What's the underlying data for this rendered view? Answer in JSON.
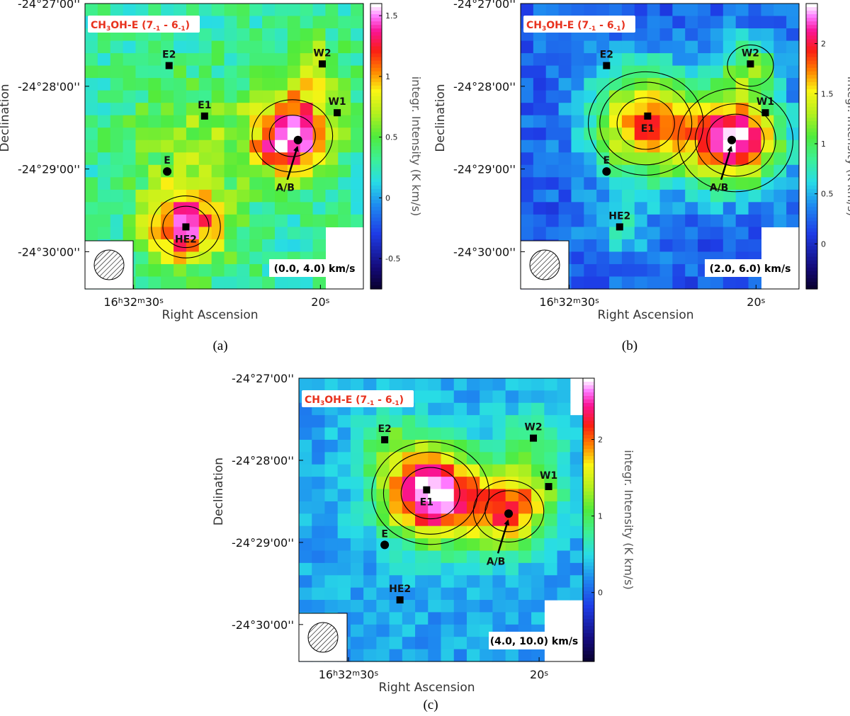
{
  "figure": {
    "xlabel": "Right Ascension",
    "ylabel": "Declination",
    "colorbar_label": "integr. Intensity (K km/s)",
    "ra_ticks": [
      {
        "h": "16",
        "m": "32",
        "s": "30",
        "ra_s": 30
      },
      {
        "s": "20",
        "ra_s": 20
      }
    ],
    "dec_ticks": [
      "-24°27'00''",
      "-24°28'00''",
      "-24°29'00''",
      "-24°30'00''"
    ]
  },
  "chart_data": [
    {
      "type": "heatmap",
      "panel": "(a)",
      "title": "CH3OH-E (7-1 - 6-1)",
      "title_parts": {
        "main": "CH",
        "sub1": "3",
        "mid": "OH-E (7",
        "sub2": "-1",
        "dash": " - 6",
        "sub3": "-1",
        "end": ")"
      },
      "velocity_range": "(0.0, 4.0) km/s",
      "colorbar": {
        "min": -0.75,
        "max": 1.6,
        "ticks": [
          -0.5,
          0,
          0.5,
          1,
          1.5
        ],
        "tick_labels": [
          "-0.5",
          "0",
          "0.5",
          "1",
          "1.5"
        ]
      },
      "background_level": 0.3,
      "peaks": [
        {
          "ra": 21.5,
          "dec": -28.6,
          "amp": 1.35,
          "sigma": 5
        },
        {
          "ra": 27.3,
          "dec": -29.7,
          "amp": 1.05,
          "sigma": 5
        },
        {
          "ra": 26.9,
          "dec": -28.7,
          "amp": 0.35,
          "sigma": 8
        },
        {
          "ra": 20.4,
          "dec": -27.8,
          "amp": 0.45,
          "sigma": 4
        }
      ],
      "contours": [
        {
          "ra": 21.5,
          "dec": -28.6,
          "r": [
            4,
            7
          ]
        },
        {
          "ra": 27.2,
          "dec": -29.7,
          "r": [
            4,
            6
          ]
        }
      ],
      "sources": [
        {
          "name": "E2",
          "shape": "square",
          "ra": 28.1,
          "dec": -27.75,
          "label_pos": "above"
        },
        {
          "name": "W2",
          "shape": "square",
          "ra": 19.9,
          "dec": -27.73,
          "label_pos": "above"
        },
        {
          "name": "E1",
          "shape": "square",
          "ra": 26.2,
          "dec": -28.36,
          "label_pos": "above"
        },
        {
          "name": "W1",
          "shape": "square",
          "ra": 19.1,
          "dec": -28.32,
          "label_pos": "above"
        },
        {
          "name": "E",
          "shape": "circle",
          "ra": 28.2,
          "dec": -29.03,
          "label_pos": "above"
        },
        {
          "name": "HE2",
          "shape": "square",
          "ra": 27.2,
          "dec": -29.7,
          "label_pos": "below"
        },
        {
          "name": "A/B",
          "shape": "circle",
          "ra": 21.2,
          "dec": -28.65,
          "label_pos": "arrow"
        }
      ]
    },
    {
      "type": "heatmap",
      "panel": "(b)",
      "title": "CH3OH-E (7-1 - 6-1)",
      "title_parts": {
        "main": "CH",
        "sub1": "3",
        "mid": "OH-E (7",
        "sub2": "-1",
        "dash": " - 6",
        "sub3": "-1",
        "end": ")"
      },
      "velocity_range": "(2.0, 6.0) km/s",
      "colorbar": {
        "min": -0.45,
        "max": 2.4,
        "ticks": [
          0,
          0.5,
          1,
          1.5,
          2
        ],
        "tick_labels": [
          "0",
          "0.5",
          "1",
          "1.5",
          "2"
        ]
      },
      "background_level": 0.25,
      "peaks": [
        {
          "ra": 25.9,
          "dec": -28.45,
          "amp": 1.6,
          "sigma": 7
        },
        {
          "ra": 21.1,
          "dec": -28.65,
          "amp": 2.0,
          "sigma": 6
        },
        {
          "ra": 20.3,
          "dec": -27.75,
          "amp": 0.8,
          "sigma": 4
        },
        {
          "ra": 27.3,
          "dec": -29.7,
          "amp": 0.4,
          "sigma": 4
        }
      ],
      "contours": [
        {
          "ra": 25.9,
          "dec": -28.45,
          "r": [
            5,
            8,
            10
          ]
        },
        {
          "ra": 21.1,
          "dec": -28.65,
          "r": [
            5,
            7,
            10
          ]
        },
        {
          "ra": 20.3,
          "dec": -27.75,
          "r": [
            4
          ]
        }
      ],
      "sources": [
        {
          "name": "E2",
          "shape": "square",
          "ra": 28.0,
          "dec": -27.75,
          "label_pos": "above"
        },
        {
          "name": "W2",
          "shape": "square",
          "ra": 20.3,
          "dec": -27.73,
          "label_pos": "above"
        },
        {
          "name": "E1",
          "shape": "square",
          "ra": 25.8,
          "dec": -28.36,
          "label_pos": "below"
        },
        {
          "name": "W1",
          "shape": "square",
          "ra": 19.5,
          "dec": -28.32,
          "label_pos": "above"
        },
        {
          "name": "E",
          "shape": "circle",
          "ra": 28.0,
          "dec": -29.03,
          "label_pos": "above"
        },
        {
          "name": "HE2",
          "shape": "square",
          "ra": 27.3,
          "dec": -29.7,
          "label_pos": "above"
        },
        {
          "name": "A/B",
          "shape": "circle",
          "ra": 21.3,
          "dec": -28.65,
          "label_pos": "arrow"
        }
      ]
    },
    {
      "type": "heatmap",
      "panel": "(c)",
      "title": "CH3OH-E (7-1 - 6-1)",
      "title_parts": {
        "main": "CH",
        "sub1": "3",
        "mid": "OH-E (7",
        "sub2": "-1",
        "dash": " - 6",
        "sub3": "-1",
        "end": ")"
      },
      "velocity_range": "(4.0, 10.0) km/s",
      "colorbar": {
        "min": -0.9,
        "max": 2.8,
        "ticks": [
          0,
          1,
          2
        ],
        "tick_labels": [
          "0",
          "1",
          "2"
        ]
      },
      "background_level": 0.3,
      "peaks": [
        {
          "ra": 25.7,
          "dec": -28.4,
          "amp": 2.6,
          "sigma": 6
        },
        {
          "ra": 21.7,
          "dec": -28.62,
          "amp": 1.7,
          "sigma": 5
        },
        {
          "ra": 20.3,
          "dec": -27.75,
          "amp": 0.6,
          "sigma": 4
        },
        {
          "ra": 28.1,
          "dec": -27.75,
          "amp": 0.55,
          "sigma": 4
        },
        {
          "ra": 20.0,
          "dec": -28.35,
          "amp": 0.5,
          "sigma": 4
        }
      ],
      "contours": [
        {
          "ra": 25.7,
          "dec": -28.4,
          "r": [
            5,
            8,
            10
          ]
        },
        {
          "ra": 21.6,
          "dec": -28.62,
          "r": [
            4,
            6
          ]
        }
      ],
      "sources": [
        {
          "name": "E2",
          "shape": "square",
          "ra": 28.1,
          "dec": -27.75,
          "label_pos": "above"
        },
        {
          "name": "W2",
          "shape": "square",
          "ra": 20.3,
          "dec": -27.73,
          "label_pos": "above"
        },
        {
          "name": "E1",
          "shape": "square",
          "ra": 25.9,
          "dec": -28.36,
          "label_pos": "below"
        },
        {
          "name": "W1",
          "shape": "square",
          "ra": 19.5,
          "dec": -28.32,
          "label_pos": "above"
        },
        {
          "name": "E",
          "shape": "circle",
          "ra": 28.1,
          "dec": -29.03,
          "label_pos": "above"
        },
        {
          "name": "HE2",
          "shape": "square",
          "ra": 27.3,
          "dec": -29.7,
          "label_pos": "above"
        },
        {
          "name": "A/B",
          "shape": "circle",
          "ra": 21.6,
          "dec": -28.65,
          "label_pos": "arrow"
        }
      ]
    }
  ]
}
